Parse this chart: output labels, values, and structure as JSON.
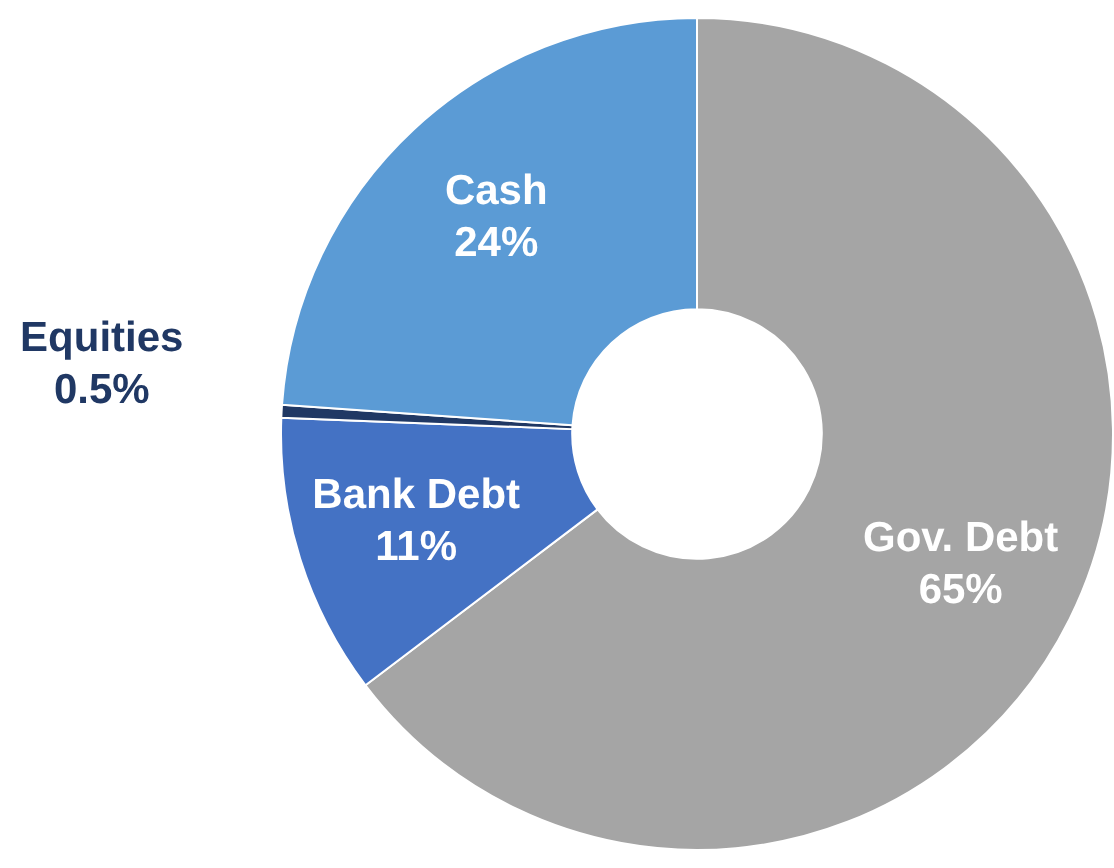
{
  "chart_data": {
    "type": "donut",
    "categories": [
      "Gov. Debt",
      "Bank Debt",
      "Equities",
      "Cash"
    ],
    "values": [
      65,
      11,
      0.5,
      24
    ],
    "colors": [
      "#a5a5a5",
      "#4472c4",
      "#203864",
      "#5b9bd5"
    ],
    "value_labels": [
      "65%",
      "11%",
      "0.5%",
      "24%"
    ],
    "legend": false
  }
}
